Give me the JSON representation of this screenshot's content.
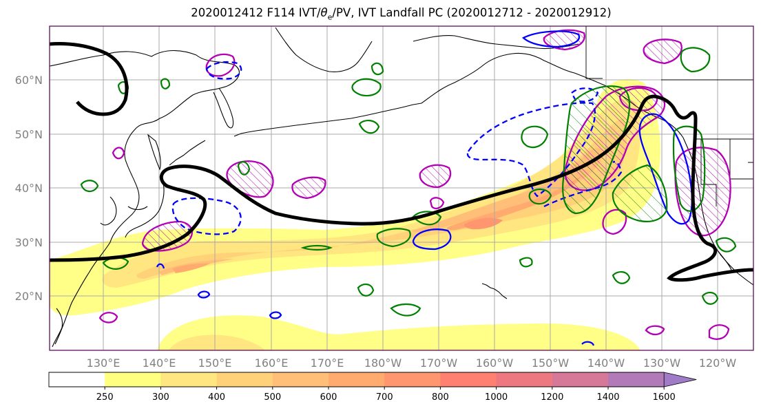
{
  "title": {
    "prefix": "2020012412 F114 IVT/",
    "theta": "θ",
    "theta_sub": "e",
    "suffix": "/PV, IVT Landfall PC (2020012712 - 2020012912)"
  },
  "map": {
    "lat_labels": [
      "60°N",
      "50°N",
      "40°N",
      "30°N",
      "20°N"
    ],
    "lon_labels": [
      "130°E",
      "140°E",
      "150°E",
      "160°E",
      "170°E",
      "180°W",
      "170°W",
      "160°W",
      "150°W",
      "140°W",
      "130°W",
      "120°W"
    ],
    "colors": {
      "frame": "#5a0f5a",
      "grid": "#a8a8a8",
      "coast": "#000000",
      "theta_e_contour": "#000000",
      "pv_positive": "#b400b4",
      "pv_negative": "#0000ff",
      "anomaly": "#008000"
    }
  },
  "colorbar": {
    "levels": [
      "250",
      "300",
      "400",
      "500",
      "600",
      "700",
      "800",
      "1000",
      "1200",
      "1400",
      "1600"
    ],
    "colors": [
      "#ffffff",
      "#ffff80",
      "#ffe680",
      "#ffd27a",
      "#ffbf78",
      "#ffab70",
      "#ff9670",
      "#ff8070",
      "#ee7880",
      "#d67898",
      "#b27ab8",
      "#a07cc8"
    ]
  }
}
